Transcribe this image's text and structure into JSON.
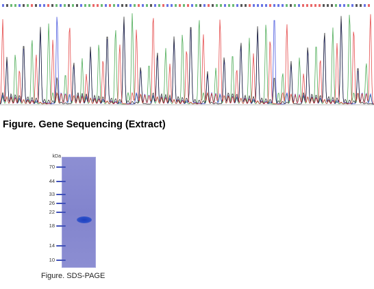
{
  "sequencing": {
    "caption": "Figure. Gene Sequencing (Extract)",
    "colors": {
      "A": "#2e9e3a",
      "C": "#2a3bd8",
      "G": "#111111",
      "T": "#e02a2a"
    }
  },
  "sds_page": {
    "caption": "Figure. SDS-PAGE",
    "unit_label": "kDa",
    "markers": [
      "70",
      "44",
      "33",
      "26",
      "22",
      "18",
      "14",
      "10"
    ],
    "gel_color": "#8a8cd1",
    "band_color": "#1f3fc0"
  }
}
